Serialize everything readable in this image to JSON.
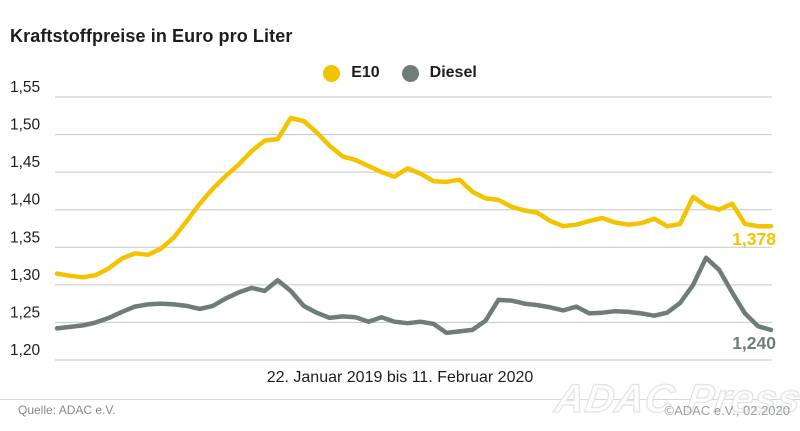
{
  "title": "Kraftstoffpreise in Euro pro Liter",
  "legend": {
    "items": [
      {
        "label": "E10",
        "color": "#f4c300"
      },
      {
        "label": "Diesel",
        "color": "#6f7d79"
      }
    ]
  },
  "caption": "22. Januar 2019 bis 11. Februar 2020",
  "footer": {
    "source": "Quelle: ADAC e.V.",
    "watermark": "ADAC Presse",
    "copyright": "©ADAC e.V., 02.2020"
  },
  "colors": {
    "e10": "#f4c300",
    "diesel": "#6f7d79",
    "text": "#1d1d1b",
    "gridline": "#c6c6c6",
    "source_text": "#878787",
    "copyright_text": "#989e9e",
    "watermark_outline": "#e2e2e2",
    "background": "#ffffff"
  },
  "chart_data": {
    "type": "line",
    "title": "Kraftstoffpreise in Euro pro Liter",
    "xlabel": "22. Januar 2019 bis 11. Februar 2020",
    "ylabel": "Euro pro Liter",
    "x_start": "22. Januar 2019",
    "x_end": "11. Februar 2020",
    "x_sampling": "weekly",
    "n_points": 56,
    "ylim": [
      1.2,
      1.55
    ],
    "ytick_step": 0.05,
    "grid": true,
    "legend_position": "top-center",
    "grid_color": "#c6c6c6",
    "tick_color": "#1d1d1b",
    "yticks": [
      {
        "value": 1.55,
        "label": "1,55"
      },
      {
        "value": 1.5,
        "label": "1,50"
      },
      {
        "value": 1.45,
        "label": "1,45"
      },
      {
        "value": 1.4,
        "label": "1,40"
      },
      {
        "value": 1.35,
        "label": "1,35"
      },
      {
        "value": 1.3,
        "label": "1,30"
      },
      {
        "value": 1.25,
        "label": "1,25"
      },
      {
        "value": 1.2,
        "label": "1,20"
      }
    ],
    "series": [
      {
        "name": "E10",
        "color": "#f4c300",
        "end_label": "1,378",
        "end_value": 1.378,
        "values": [
          1.315,
          1.312,
          1.31,
          1.313,
          1.322,
          1.335,
          1.342,
          1.34,
          1.348,
          1.363,
          1.385,
          1.408,
          1.428,
          1.445,
          1.46,
          1.478,
          1.492,
          1.494,
          1.522,
          1.518,
          1.503,
          1.485,
          1.471,
          1.466,
          1.458,
          1.45,
          1.444,
          1.455,
          1.448,
          1.438,
          1.437,
          1.44,
          1.424,
          1.415,
          1.413,
          1.404,
          1.399,
          1.396,
          1.385,
          1.378,
          1.38,
          1.385,
          1.389,
          1.383,
          1.38,
          1.382,
          1.388,
          1.378,
          1.381,
          1.417,
          1.405,
          1.4,
          1.408,
          1.381,
          1.378,
          1.378
        ]
      },
      {
        "name": "Diesel",
        "color": "#6f7d79",
        "end_label": "1,240",
        "end_value": 1.24,
        "values": [
          1.242,
          1.244,
          1.246,
          1.25,
          1.256,
          1.264,
          1.271,
          1.274,
          1.275,
          1.274,
          1.272,
          1.268,
          1.272,
          1.282,
          1.29,
          1.296,
          1.292,
          1.306,
          1.292,
          1.272,
          1.263,
          1.256,
          1.258,
          1.257,
          1.251,
          1.257,
          1.251,
          1.249,
          1.251,
          1.248,
          1.236,
          1.238,
          1.24,
          1.252,
          1.28,
          1.279,
          1.275,
          1.273,
          1.27,
          1.266,
          1.271,
          1.262,
          1.263,
          1.265,
          1.264,
          1.262,
          1.259,
          1.263,
          1.276,
          1.3,
          1.336,
          1.32,
          1.29,
          1.262,
          1.245,
          1.24
        ]
      }
    ]
  }
}
